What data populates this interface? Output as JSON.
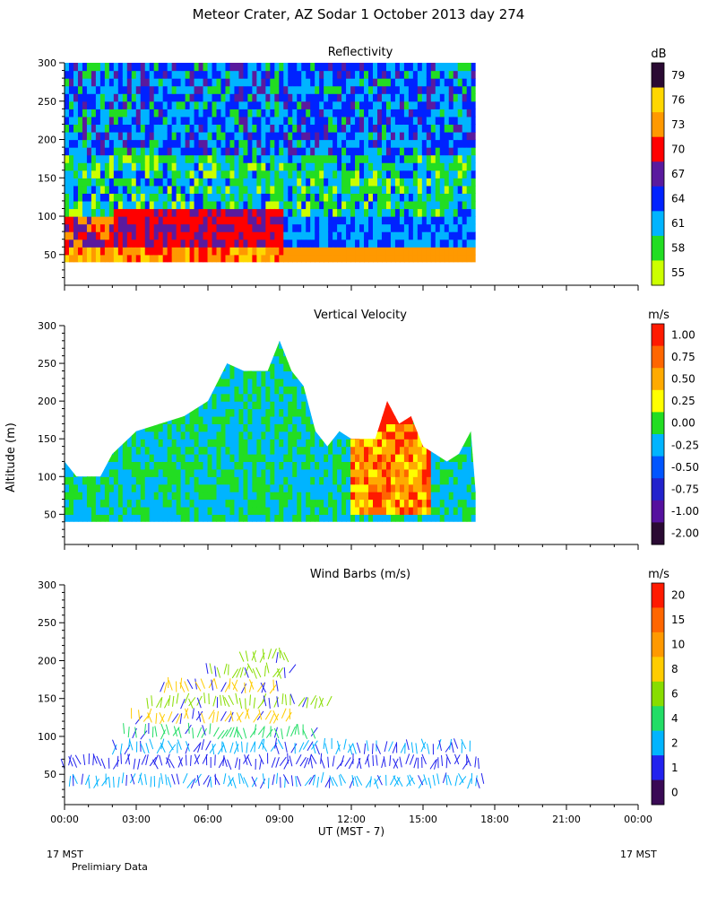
{
  "figure": {
    "title": "Meteor Crater, AZ  Sodar   1 October 2013  day 274",
    "y_axis_title": "Altitude (m)",
    "x_axis_title": "UT  (MST - 7)",
    "x_ticks": [
      "00:00",
      "03:00",
      "06:00",
      "09:00",
      "12:00",
      "15:00",
      "18:00",
      "21:00",
      "00:00"
    ],
    "left_footer": "17 MST",
    "right_footer": "17 MST",
    "note": "Prelimiary Data"
  },
  "chart_data": [
    {
      "type": "heatmap",
      "title": "Reflectivity",
      "units": "dB",
      "ylim": [
        10,
        300
      ],
      "y_ticks": [
        50,
        100,
        150,
        200,
        250,
        300
      ],
      "xlim_hours": [
        0,
        24
      ],
      "data_extent_hours": [
        0,
        17.2
      ],
      "data_extent_alt": [
        40,
        300
      ],
      "colorbar": {
        "labels": [
          "79",
          "76",
          "73",
          "70",
          "67",
          "64",
          "61",
          "58",
          "55"
        ],
        "colors": [
          "#2a0a33",
          "#ffd700",
          "#ff9900",
          "#ff0000",
          "#5a1a9e",
          "#0022ff",
          "#00b4ff",
          "#22dd22",
          "#ccff00"
        ]
      },
      "profiles": [
        {
          "alt_range": [
            40,
            60
          ],
          "value_db": 73
        },
        {
          "alt_range": [
            60,
            100
          ],
          "value_db": 70
        },
        {
          "alt_range": [
            100,
            180
          ],
          "value_db": 61
        },
        {
          "alt_range": [
            180,
            300
          ],
          "value_db": 64
        }
      ]
    },
    {
      "type": "heatmap",
      "title": "Vertical Velocity",
      "units": "m/s",
      "ylim": [
        10,
        300
      ],
      "y_ticks": [
        50,
        100,
        150,
        200,
        250,
        300
      ],
      "xlim_hours": [
        0,
        24
      ],
      "data_extent_hours": [
        0,
        17.2
      ],
      "top_of_data_m": [
        [
          0,
          120
        ],
        [
          0.5,
          100
        ],
        [
          1.5,
          100
        ],
        [
          2,
          130
        ],
        [
          3,
          160
        ],
        [
          4,
          170
        ],
        [
          5,
          180
        ],
        [
          6,
          200
        ],
        [
          6.8,
          250
        ],
        [
          7.5,
          240
        ],
        [
          8.5,
          240
        ],
        [
          9,
          280
        ],
        [
          9.5,
          240
        ],
        [
          10,
          220
        ],
        [
          10.5,
          160
        ],
        [
          11,
          140
        ],
        [
          11.5,
          160
        ],
        [
          12,
          150
        ],
        [
          13,
          150
        ],
        [
          13.5,
          200
        ],
        [
          14,
          170
        ],
        [
          14.5,
          180
        ],
        [
          15,
          140
        ],
        [
          15.5,
          130
        ],
        [
          16,
          120
        ],
        [
          16.5,
          130
        ],
        [
          17,
          160
        ],
        [
          17.2,
          80
        ]
      ],
      "colorbar": {
        "labels": [
          "1.00",
          "0.75",
          "0.50",
          "0.25",
          "0.00",
          "-0.25",
          "-0.50",
          "-0.75",
          "-1.00",
          "-2.00"
        ],
        "colors": [
          "#ff1a00",
          "#ff6600",
          "#ffaa00",
          "#ffff00",
          "#22dd22",
          "#00b4ff",
          "#0055ff",
          "#2222cc",
          "#55119e",
          "#2a0a33"
        ]
      }
    },
    {
      "type": "scatter",
      "title": "Wind Barbs (m/s)",
      "units": "m/s",
      "ylim": [
        10,
        300
      ],
      "y_ticks": [
        50,
        100,
        150,
        200,
        250,
        300
      ],
      "xlim_hours": [
        0,
        24
      ],
      "colorbar": {
        "labels": [
          "20",
          "15",
          "10",
          "8",
          "6",
          "4",
          "2",
          "1",
          "0"
        ],
        "colors": [
          "#ff1a00",
          "#ff6600",
          "#ff9900",
          "#ffcc00",
          "#88dd00",
          "#22dd66",
          "#00b4ff",
          "#2222ee",
          "#3a0a55"
        ]
      },
      "rows": [
        {
          "alt": 35,
          "hours": [
            0.2,
            17.6
          ],
          "color": "#00b4ff"
        },
        {
          "alt": 60,
          "hours": [
            0.0,
            17.5
          ],
          "color": "#2222ee"
        },
        {
          "alt": 80,
          "hours": [
            2.0,
            17.0
          ],
          "color": "#00b4ff"
        },
        {
          "alt": 100,
          "hours": [
            2.5,
            10.5
          ],
          "color": "#22dd66"
        },
        {
          "alt": 120,
          "hours": [
            2.8,
            9.5
          ],
          "color": "#ffcc00"
        },
        {
          "alt": 140,
          "hours": [
            3.5,
            11.0
          ],
          "color": "#88dd00"
        },
        {
          "alt": 160,
          "hours": [
            4.0,
            9.0
          ],
          "color": "#ffcc00"
        },
        {
          "alt": 180,
          "hours": [
            6.0,
            9.5
          ],
          "color": "#88dd00"
        },
        {
          "alt": 200,
          "hours": [
            7.5,
            9.5
          ],
          "color": "#88dd00"
        }
      ]
    }
  ]
}
